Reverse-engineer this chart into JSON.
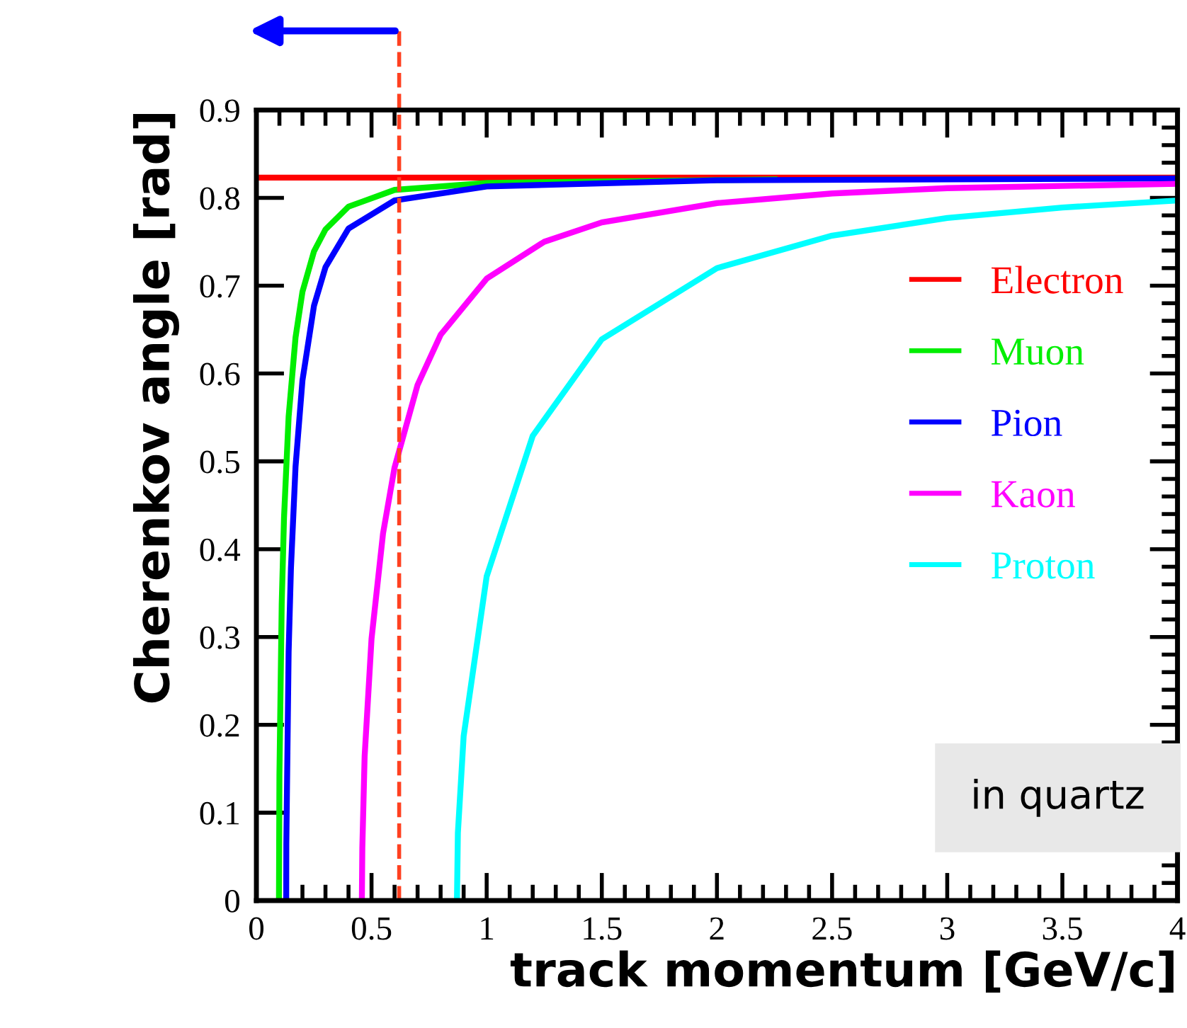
{
  "chart_data": {
    "type": "line",
    "xlabel": "track momentum [GeV/c]",
    "ylabel": "Cherenkov angle [rad]",
    "xlim": [
      0,
      4
    ],
    "ylim": [
      0,
      0.9
    ],
    "xticks": [
      0,
      0.5,
      1,
      1.5,
      2,
      2.5,
      3,
      3.5,
      4
    ],
    "yticks": [
      0,
      0.1,
      0.2,
      0.3,
      0.4,
      0.5,
      0.6,
      0.7,
      0.8,
      0.9
    ],
    "grid": false,
    "legend": "right",
    "marker": "none",
    "line_style": "solid",
    "series": [
      {
        "name": "Electron",
        "color": "#ff0000",
        "x": [
          0,
          4
        ],
        "values": [
          0.823,
          0.823
        ]
      },
      {
        "name": "Muon",
        "color": "#00ee00",
        "x": [
          0.098,
          0.1,
          0.11,
          0.12,
          0.14,
          0.17,
          0.2,
          0.25,
          0.3,
          0.4,
          0.6,
          1,
          2.25
        ],
        "values": [
          0,
          0.142,
          0.338,
          0.436,
          0.551,
          0.641,
          0.693,
          0.739,
          0.764,
          0.79,
          0.809,
          0.817,
          0.821
        ]
      },
      {
        "name": "Pion",
        "color": "#0000ff",
        "x": [
          0.1295,
          0.13,
          0.14,
          0.15,
          0.17,
          0.2,
          0.25,
          0.3,
          0.4,
          0.6,
          1,
          2,
          4
        ],
        "values": [
          0,
          0.064,
          0.283,
          0.378,
          0.494,
          0.592,
          0.677,
          0.721,
          0.765,
          0.797,
          0.813,
          0.82,
          0.822
        ]
      },
      {
        "name": "Kaon",
        "color": "#ff00ff",
        "x": [
          0.458,
          0.46,
          0.47,
          0.5,
          0.55,
          0.6,
          0.7,
          0.8,
          1,
          1.25,
          1.5,
          2,
          2.5,
          3,
          4
        ],
        "values": [
          0,
          0.06,
          0.164,
          0.298,
          0.418,
          0.493,
          0.587,
          0.644,
          0.708,
          0.75,
          0.772,
          0.794,
          0.805,
          0.811,
          0.816
        ]
      },
      {
        "name": "Proton",
        "color": "#00ffff",
        "x": [
          0.871,
          0.875,
          0.9,
          1,
          1.2,
          1.5,
          2,
          2.5,
          3,
          3.5,
          4
        ],
        "values": [
          0,
          0.077,
          0.187,
          0.369,
          0.529,
          0.639,
          0.72,
          0.757,
          0.777,
          0.789,
          0.797
        ]
      }
    ],
    "ref_lines": [
      {
        "axis": "x",
        "value": 0.62,
        "label": null,
        "color": "#ff4020",
        "line_style": "dashed"
      }
    ],
    "annotations": [
      "in quartz"
    ]
  }
}
